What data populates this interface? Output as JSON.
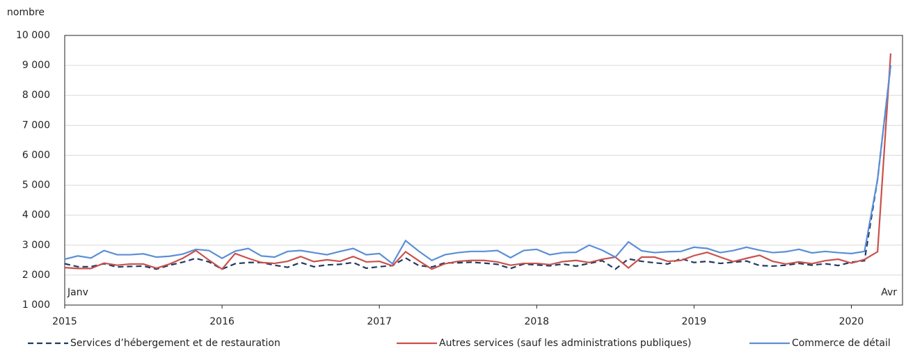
{
  "chart_data": {
    "type": "line",
    "y_label": "nombre",
    "categories": [
      "2015",
      null,
      null,
      null,
      null,
      null,
      null,
      null,
      null,
      null,
      null,
      null,
      "2016",
      null,
      null,
      null,
      null,
      null,
      null,
      null,
      null,
      null,
      null,
      null,
      "2017",
      null,
      null,
      null,
      null,
      null,
      null,
      null,
      null,
      null,
      null,
      null,
      "2018",
      null,
      null,
      null,
      null,
      null,
      null,
      null,
      null,
      null,
      null,
      null,
      "2019",
      null,
      null,
      null,
      null,
      null,
      null,
      null,
      null,
      null,
      null,
      null,
      "2020",
      null,
      null,
      null
    ],
    "annotations": [
      "Janv",
      "Avr"
    ],
    "series": [
      {
        "name": "Services d’hébergement et de restauration",
        "color": "#1f3a60",
        "dashed": true,
        "values": [
          2380,
          2280,
          2280,
          2380,
          2270,
          2290,
          2300,
          2200,
          2330,
          2430,
          2560,
          2440,
          2200,
          2380,
          2420,
          2420,
          2330,
          2260,
          2420,
          2280,
          2340,
          2360,
          2420,
          2230,
          2280,
          2320,
          2570,
          2320,
          2270,
          2410,
          2410,
          2430,
          2400,
          2360,
          2220,
          2370,
          2340,
          2310,
          2370,
          2300,
          2390,
          2480,
          2200,
          2540,
          2460,
          2410,
          2370,
          2550,
          2420,
          2460,
          2390,
          2430,
          2470,
          2320,
          2300,
          2330,
          2390,
          2330,
          2380,
          2320,
          2430,
          2480,
          5200,
          9000
        ]
      },
      {
        "name": "Autres services (sauf les administrations publiques)",
        "color": "#c9504b",
        "dashed": false,
        "values": [
          2250,
          2220,
          2220,
          2400,
          2330,
          2370,
          2370,
          2230,
          2370,
          2560,
          2820,
          2500,
          2200,
          2720,
          2560,
          2420,
          2390,
          2460,
          2620,
          2450,
          2510,
          2460,
          2620,
          2440,
          2460,
          2310,
          2780,
          2480,
          2200,
          2380,
          2460,
          2490,
          2490,
          2440,
          2330,
          2390,
          2390,
          2350,
          2450,
          2490,
          2420,
          2530,
          2600,
          2240,
          2600,
          2600,
          2460,
          2490,
          2650,
          2760,
          2600,
          2450,
          2560,
          2660,
          2460,
          2370,
          2440,
          2380,
          2480,
          2530,
          2400,
          2520,
          2780,
          9400
        ]
      },
      {
        "name": "Commerce de détail",
        "color": "#5b8ed6",
        "dashed": false,
        "values": [
          2530,
          2640,
          2570,
          2820,
          2680,
          2680,
          2710,
          2600,
          2630,
          2700,
          2860,
          2820,
          2560,
          2800,
          2890,
          2640,
          2600,
          2790,
          2820,
          2750,
          2680,
          2790,
          2890,
          2680,
          2720,
          2380,
          3150,
          2800,
          2490,
          2680,
          2750,
          2790,
          2790,
          2820,
          2580,
          2820,
          2860,
          2680,
          2750,
          2760,
          3000,
          2830,
          2600,
          3110,
          2810,
          2750,
          2780,
          2790,
          2930,
          2890,
          2750,
          2820,
          2930,
          2830,
          2750,
          2780,
          2860,
          2740,
          2790,
          2750,
          2720,
          2790,
          5200,
          9000
        ]
      }
    ],
    "ylim": [
      1000,
      10000
    ],
    "yticks": [
      {
        "value": 1000,
        "label": "1 000"
      },
      {
        "value": 2000,
        "label": "2 000"
      },
      {
        "value": 3000,
        "label": "3 000"
      },
      {
        "value": 4000,
        "label": "4 000"
      },
      {
        "value": 5000,
        "label": "5 000"
      },
      {
        "value": 6000,
        "label": "6 000"
      },
      {
        "value": 7000,
        "label": "7 000"
      },
      {
        "value": 8000,
        "label": "8 000"
      },
      {
        "value": 9000,
        "label": "9 000"
      },
      {
        "value": 10000,
        "label": "10 000"
      }
    ],
    "grid": true
  }
}
